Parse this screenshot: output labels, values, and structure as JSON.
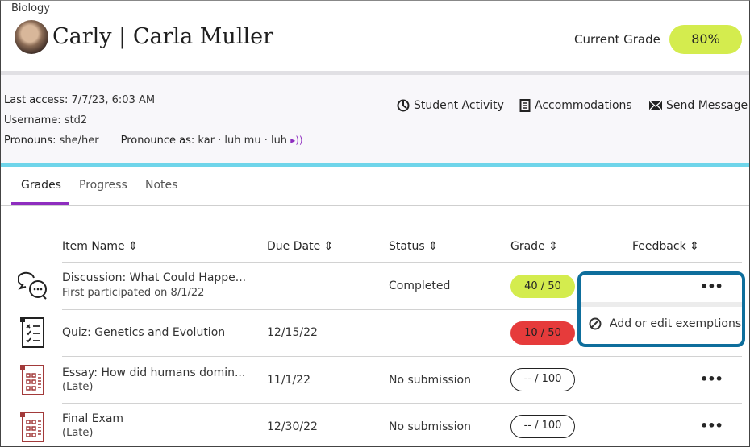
{
  "header": {
    "course": "Biology",
    "student_name": "Carly | Carla Muller",
    "current_grade_label": "Current Grade",
    "current_grade": "80%",
    "grade_color": "#d4ec4e"
  },
  "info": {
    "last_access_label": "Last access:",
    "last_access": "7/7/23, 6:03 AM",
    "username_label": "Username:",
    "username": "std2",
    "pronouns_label": "Pronouns:",
    "pronouns": "she/her",
    "pronounce_label": "Pronounce as:",
    "pronounce": "kar · luh mu · luh"
  },
  "actions": [
    {
      "label": "Student Activity",
      "icon": "clock-chart-icon"
    },
    {
      "label": "Accommodations",
      "icon": "document-icon"
    },
    {
      "label": "Send Message",
      "icon": "envelope-icon"
    }
  ],
  "tabs": [
    {
      "label": "Grades",
      "active": true
    },
    {
      "label": "Progress"
    },
    {
      "label": "Notes"
    }
  ],
  "table": {
    "headers": [
      "Item Name",
      "Due Date",
      "Status",
      "Grade",
      "Feedback"
    ],
    "rows": [
      {
        "name": "Discussion: What Could Happe...",
        "sub": "First participated on 8/1/22",
        "due": "",
        "status": "Completed",
        "grade": "40 / 50",
        "grade_style": "green",
        "icon": "discussion-icon"
      },
      {
        "name": "Quiz: Genetics and Evolution",
        "sub": "",
        "due": "12/15/22",
        "status": "",
        "grade": "10 / 50",
        "grade_style": "red",
        "icon": "quiz-icon"
      },
      {
        "name": "Essay: How did humans domin...",
        "sub": "(Late)",
        "due": "11/1/22",
        "status": "No submission",
        "grade": "-- / 100",
        "grade_style": "outline",
        "icon": "assignment-icon"
      },
      {
        "name": "Final Exam",
        "sub": "(Late)",
        "due": "12/30/22",
        "status": "No submission",
        "grade": "-- / 100",
        "grade_style": "outline",
        "icon": "assignment-icon"
      }
    ]
  },
  "menu": {
    "more": "•••",
    "item": "Add or edit exemptions",
    "border_color": "#0e6e9c"
  },
  "colors": {
    "green": "#d4ec4e",
    "red": "#e63b3b",
    "accent": "#8e2dbf",
    "cyan": "#6fd5ea"
  }
}
